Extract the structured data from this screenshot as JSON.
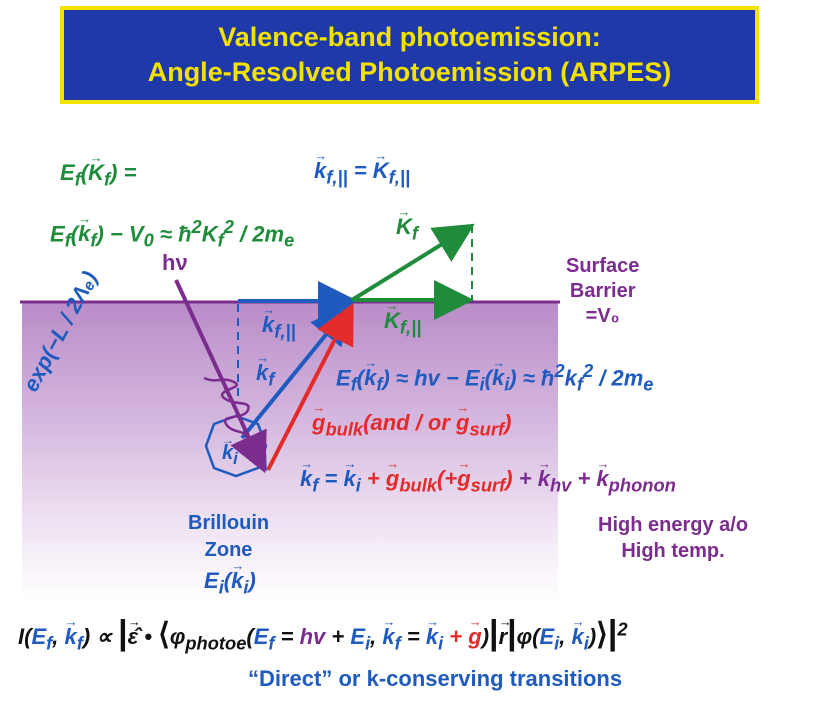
{
  "title": {
    "line1": "Valence-band photoemission:",
    "line2": "Angle-Resolved Photoemission (ARPES)"
  },
  "labels": {
    "hv": "hν",
    "surface_barrier": "Surface\nBarrier\n=V₀",
    "attenuation": "exp(−L / 2Λₑ)",
    "brillouin": "Brillouin\nZone",
    "high_energy": "High energy a/o\nHigh temp.",
    "direct": "“Direct” or k-conserving transitions"
  },
  "colors": {
    "title_bg": "#1f3aa8",
    "title_text": "#f3e100",
    "green": "#1e8c3a",
    "blue": "#1f5bbf",
    "red": "#e32b2b",
    "purple": "#7b2d8e"
  }
}
